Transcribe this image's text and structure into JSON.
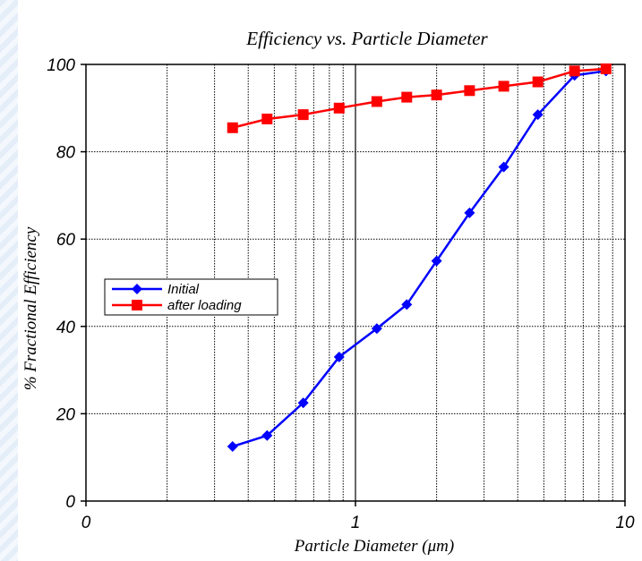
{
  "chart_data": {
    "type": "line",
    "title": "Efficiency vs. Particle Diameter",
    "xlabel": "Particle Diameter (μm)",
    "ylabel": "% Fractional Efficiency",
    "x_scale": "log",
    "xlim": [
      0.1,
      10
    ],
    "ylim": [
      0,
      100
    ],
    "x_tick_labels": [
      "0",
      "1",
      "10"
    ],
    "y_ticks": [
      0,
      20,
      40,
      60,
      80,
      100
    ],
    "grid": true,
    "legend_position": "middle-left",
    "series": [
      {
        "name": "Initial",
        "color": "#0000ff",
        "marker": "diamond",
        "x": [
          0.35,
          0.47,
          0.64,
          0.87,
          1.2,
          1.55,
          2.0,
          2.65,
          3.55,
          4.75,
          6.5,
          8.5
        ],
        "y": [
          12.5,
          15,
          22.5,
          33,
          39.5,
          45,
          55,
          66,
          76.5,
          88.5,
          97.5,
          98.5
        ]
      },
      {
        "name": "after loading",
        "color": "#ff0000",
        "marker": "square",
        "x": [
          0.35,
          0.47,
          0.64,
          0.87,
          1.2,
          1.55,
          2.0,
          2.65,
          3.55,
          4.75,
          6.5,
          8.5
        ],
        "y": [
          85.5,
          87.5,
          88.5,
          90,
          91.5,
          92.5,
          93,
          94,
          95,
          96,
          98.5,
          99
        ]
      }
    ]
  }
}
